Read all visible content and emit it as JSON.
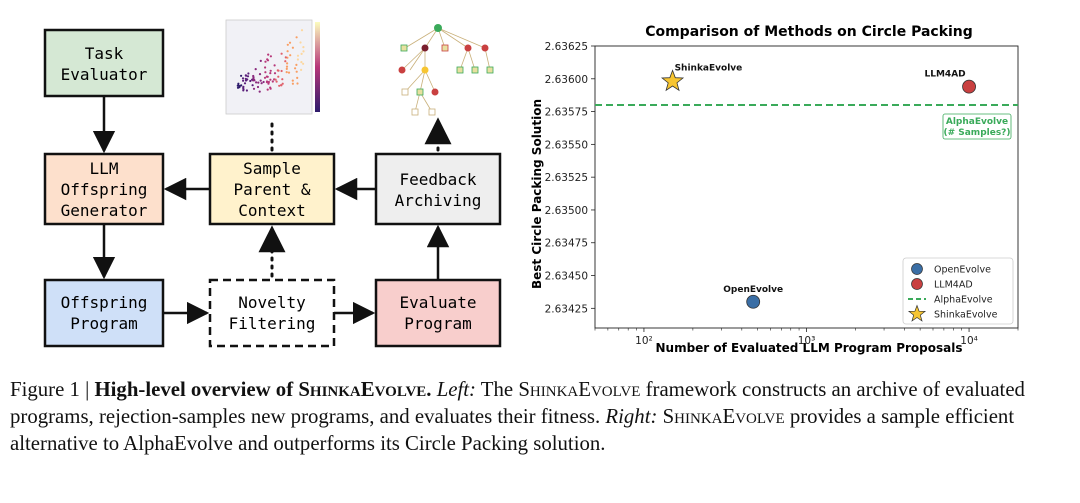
{
  "diagram": {
    "boxes": {
      "task_evaluator": [
        "Task",
        "Evaluator"
      ],
      "llm_generator": [
        "LLM",
        "Offspring",
        "Generator"
      ],
      "sample_parent": [
        "Sample",
        "Parent &",
        "Context"
      ],
      "feedback": [
        "Feedback",
        "Archiving"
      ],
      "offspring_program": [
        "Offspring",
        "Program"
      ],
      "novelty": [
        "Novelty",
        "Filtering"
      ],
      "evaluate_program": [
        "Evaluate",
        "Program"
      ]
    },
    "colors": {
      "task_evaluator": "#d5e8d4",
      "llm_generator": "#fde0cc",
      "sample_parent": "#fff2cc",
      "feedback": "#eeeeee",
      "offspring_program": "#cfe0f8",
      "novelty": "#ffffff",
      "evaluate_program": "#f8cecc"
    }
  },
  "chart_data": {
    "type": "scatter",
    "title": "Comparison of Methods on Circle Packing",
    "xlabel": "Number of Evaluated LLM Program Proposals",
    "ylabel": "Best Circle Packing Solution",
    "x_scale": "log",
    "xlim": [
      50,
      20000
    ],
    "ylim": [
      2.6341,
      2.63625
    ],
    "x_ticks": [
      "10²",
      "10³",
      "10⁴"
    ],
    "x_tick_values": [
      100,
      1000,
      10000
    ],
    "y_ticks": [
      "2.63425",
      "2.63450",
      "2.63475",
      "2.63500",
      "2.63525",
      "2.63550",
      "2.63575",
      "2.63600",
      "2.63625"
    ],
    "y_tick_values": [
      2.63425,
      2.6345,
      2.63475,
      2.635,
      2.63525,
      2.6355,
      2.63575,
      2.636,
      2.63625
    ],
    "grid": true,
    "legend_position": "bottom-right",
    "points": [
      {
        "name": "ShinkaEvolve",
        "x": 150,
        "y": 2.63598,
        "marker": "star",
        "color": "#f7c531",
        "label": "ShinkaEvolve"
      },
      {
        "name": "LLM4AD",
        "x": 10000,
        "y": 2.63594,
        "marker": "circle",
        "color": "#c94040",
        "label": "LLM4AD"
      },
      {
        "name": "OpenEvolve",
        "x": 470,
        "y": 2.6343,
        "marker": "circle",
        "color": "#3a6ea5",
        "label": "OpenEvolve"
      }
    ],
    "hline": {
      "name": "AlphaEvolve",
      "y": 2.6358,
      "color": "#3aaa5a",
      "annotation": [
        "AlphaEvolve",
        "(# Samples?)"
      ]
    },
    "legend": [
      "OpenEvolve",
      "LLM4AD",
      "AlphaEvolve",
      "ShinkaEvolve"
    ]
  },
  "caption": {
    "figure_label": "Figure 1 | ",
    "title_bold_1": "High-level overview of ",
    "title_bold_sc": "ShinkaEvolve",
    "title_bold_end": ".",
    "left": "Left:",
    "text1": " The ",
    "sc1": "ShinkaEvolve",
    "text2": " framework constructs an archive of evaluated programs, rejection-samples new programs, and evaluates their fitness. ",
    "right": "Right:",
    "text3": " ",
    "sc2": "ShinkaEvolve",
    "text4": " provides a sample efficient alternative to AlphaEvolve and outperforms its Circle Packing solution."
  }
}
